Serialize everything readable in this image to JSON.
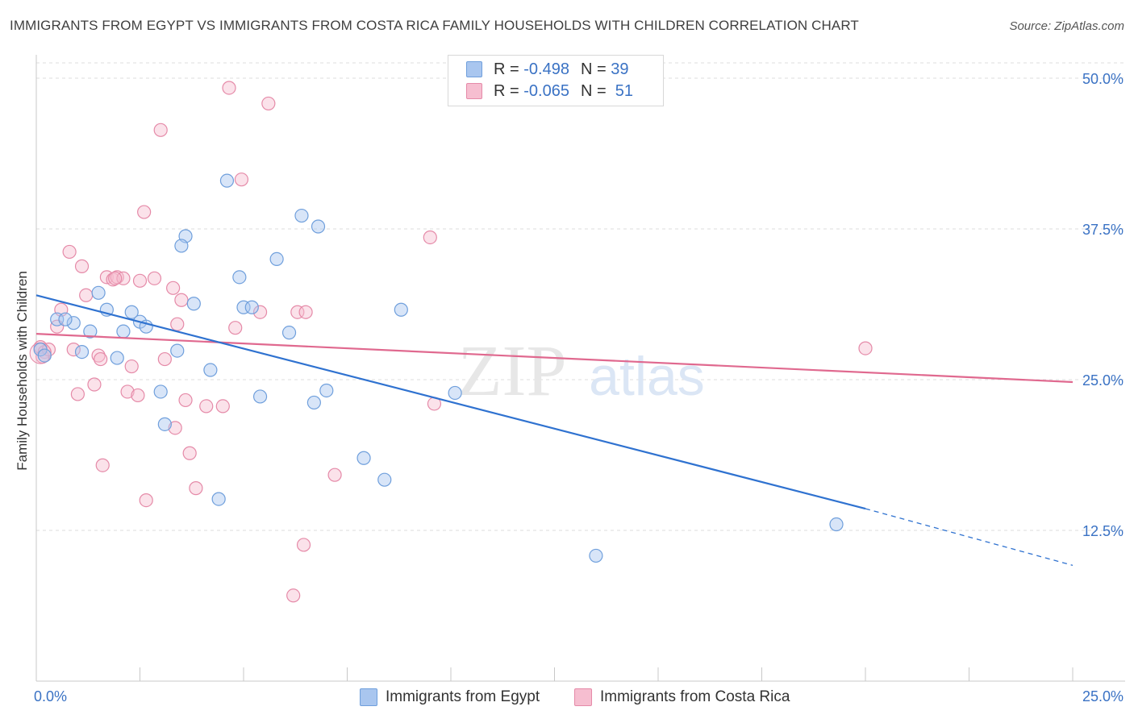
{
  "title": "IMMIGRANTS FROM EGYPT VS IMMIGRANTS FROM COSTA RICA FAMILY HOUSEHOLDS WITH CHILDREN CORRELATION CHART",
  "source": "Source: ZipAtlas.com",
  "watermark": {
    "zip": "ZIP",
    "atlas": "atlas"
  },
  "legend": {
    "egypt": {
      "r_label": "R =",
      "r_value": "-0.498",
      "n_label": "N =",
      "n_value": "39"
    },
    "costa_rica": {
      "r_label": "R =",
      "r_value": "-0.065",
      "n_label": "N =",
      "n_value": "51"
    }
  },
  "bottom_legend": {
    "egypt": "Immigrants from Egypt",
    "costa_rica": "Immigrants from Costa Rica"
  },
  "colors": {
    "egypt_fill": "#a9c6ef",
    "egypt_stroke": "#6f9fdc",
    "egypt_line": "#2f72d0",
    "costa_fill": "#f6bed0",
    "costa_stroke": "#e58aa8",
    "costa_line": "#e0698f",
    "axis_text": "#3a72c4"
  },
  "chart_data": {
    "type": "scatter",
    "title": "IMMIGRANTS FROM EGYPT VS IMMIGRANTS FROM COSTA RICA FAMILY HOUSEHOLDS WITH CHILDREN CORRELATION CHART",
    "xlabel": "",
    "ylabel": "Family Households with Children",
    "xlim": [
      0,
      25
    ],
    "ylim": [
      0,
      50
    ],
    "x_tick_labels": [
      "0.0%",
      "25.0%"
    ],
    "y_ticks": [
      12.5,
      25,
      37.5,
      50
    ],
    "y_tick_labels": [
      "12.5%",
      "25.0%",
      "37.5%",
      "50.0%"
    ],
    "grid": true,
    "series": [
      {
        "name": "Immigrants from Egypt",
        "points": [
          [
            0.1,
            27.5
          ],
          [
            0.2,
            27.0
          ],
          [
            0.5,
            30.0
          ],
          [
            0.9,
            29.7
          ],
          [
            0.7,
            30.0
          ],
          [
            1.3,
            29.0
          ],
          [
            1.1,
            27.3
          ],
          [
            1.5,
            32.2
          ],
          [
            1.7,
            30.8
          ],
          [
            1.95,
            26.8
          ],
          [
            2.1,
            29.0
          ],
          [
            2.3,
            30.6
          ],
          [
            2.5,
            29.8
          ],
          [
            2.65,
            29.4
          ],
          [
            3.0,
            24.0
          ],
          [
            3.1,
            21.3
          ],
          [
            3.4,
            27.4
          ],
          [
            3.6,
            36.9
          ],
          [
            3.5,
            36.1
          ],
          [
            3.8,
            31.3
          ],
          [
            4.2,
            25.8
          ],
          [
            4.4,
            15.1
          ],
          [
            4.6,
            41.5
          ],
          [
            4.9,
            33.5
          ],
          [
            5.0,
            31.0
          ],
          [
            5.2,
            31.0
          ],
          [
            5.4,
            23.6
          ],
          [
            5.8,
            35.0
          ],
          [
            6.1,
            28.9
          ],
          [
            6.4,
            38.6
          ],
          [
            6.7,
            23.1
          ],
          [
            6.8,
            37.7
          ],
          [
            7.0,
            24.1
          ],
          [
            7.9,
            18.5
          ],
          [
            8.4,
            16.7
          ],
          [
            8.8,
            30.8
          ],
          [
            10.1,
            23.9
          ],
          [
            13.5,
            10.4
          ],
          [
            19.3,
            13.0
          ]
        ]
      },
      {
        "name": "Immigrants from Costa Rica",
        "points": [
          [
            0.1,
            27.7
          ],
          [
            0.2,
            27.3
          ],
          [
            0.5,
            29.4
          ],
          [
            0.6,
            30.8
          ],
          [
            0.8,
            35.6
          ],
          [
            0.9,
            27.5
          ],
          [
            1.0,
            23.8
          ],
          [
            1.1,
            34.4
          ],
          [
            1.2,
            32.0
          ],
          [
            1.4,
            24.6
          ],
          [
            1.5,
            27.0
          ],
          [
            1.55,
            26.7
          ],
          [
            1.6,
            17.9
          ],
          [
            1.7,
            33.5
          ],
          [
            1.85,
            33.3
          ],
          [
            1.95,
            33.5
          ],
          [
            2.1,
            33.4
          ],
          [
            2.2,
            24.0
          ],
          [
            2.3,
            26.1
          ],
          [
            2.45,
            23.7
          ],
          [
            2.5,
            33.2
          ],
          [
            2.65,
            15.0
          ],
          [
            2.6,
            38.9
          ],
          [
            2.85,
            33.4
          ],
          [
            3.1,
            26.7
          ],
          [
            3.0,
            45.7
          ],
          [
            3.3,
            32.6
          ],
          [
            3.35,
            21.0
          ],
          [
            3.4,
            29.6
          ],
          [
            3.5,
            31.6
          ],
          [
            3.6,
            23.3
          ],
          [
            3.7,
            18.9
          ],
          [
            3.85,
            16.0
          ],
          [
            4.1,
            22.8
          ],
          [
            4.5,
            22.8
          ],
          [
            4.65,
            49.2
          ],
          [
            4.8,
            29.3
          ],
          [
            4.95,
            41.6
          ],
          [
            5.4,
            30.6
          ],
          [
            5.6,
            47.9
          ],
          [
            6.3,
            30.6
          ],
          [
            6.45,
            11.3
          ],
          [
            6.5,
            30.6
          ],
          [
            6.2,
            7.1
          ],
          [
            7.2,
            17.1
          ],
          [
            9.5,
            36.8
          ],
          [
            9.6,
            23.0
          ],
          [
            20.0,
            27.6
          ],
          [
            0.15,
            26.9
          ],
          [
            0.3,
            27.5
          ],
          [
            1.9,
            33.4
          ]
        ]
      }
    ],
    "trend_lines": [
      {
        "name": "Immigrants from Egypt",
        "solid": [
          [
            0.0,
            32.0
          ],
          [
            20.0,
            14.3
          ]
        ],
        "dashed": [
          [
            20.0,
            14.3
          ],
          [
            25.0,
            9.6
          ]
        ]
      },
      {
        "name": "Immigrants from Costa Rica",
        "solid": [
          [
            0.0,
            28.8
          ],
          [
            25.0,
            24.8
          ]
        ]
      }
    ]
  }
}
